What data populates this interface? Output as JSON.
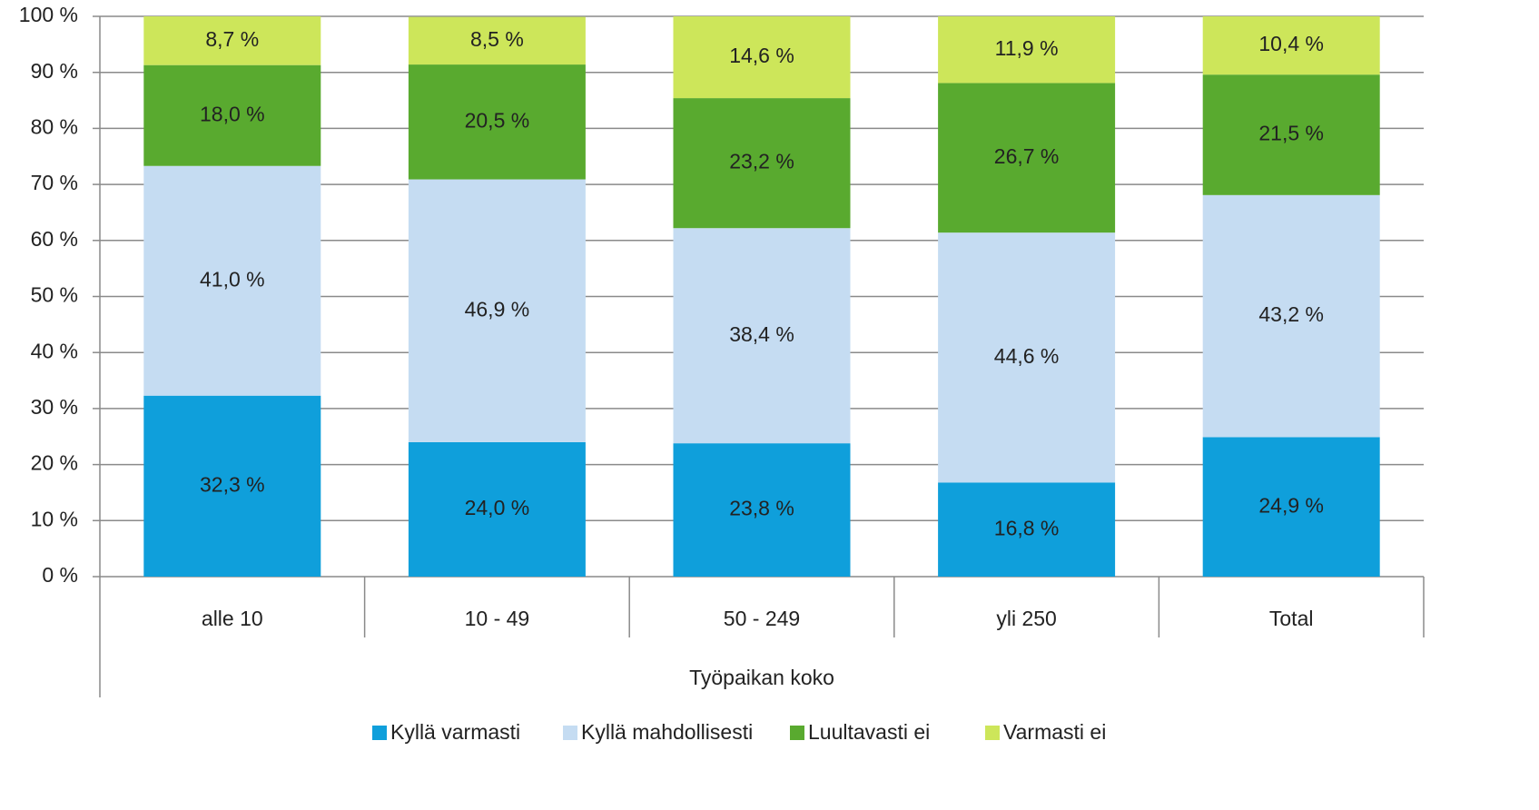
{
  "chart_data": {
    "type": "stacked_bar",
    "x_label": "Työpaikan koko",
    "categories": [
      "alle 10",
      "10 - 49",
      "50 - 249",
      "yli 250",
      "Total"
    ],
    "series": [
      {
        "name": "Kyllä varmasti",
        "color": "#0f9fdb",
        "values": [
          32.3,
          24.0,
          23.8,
          16.8,
          24.9
        ],
        "value_labels": [
          "32,3 %",
          "24,0 %",
          "23,8 %",
          "16,8 %",
          "24,9 %"
        ]
      },
      {
        "name": "Kyllä mahdollisesti",
        "color": "#c5dcf2",
        "values": [
          41.0,
          46.9,
          38.4,
          44.6,
          43.2
        ],
        "value_labels": [
          "41,0 %",
          "46,9 %",
          "38,4 %",
          "44,6 %",
          "43,2 %"
        ]
      },
      {
        "name": "Luultavasti ei",
        "color": "#59aa2f",
        "values": [
          18.0,
          20.5,
          23.2,
          26.7,
          21.5
        ],
        "value_labels": [
          "18,0 %",
          "20,5 %",
          "23,2 %",
          "26,7 %",
          "21,5 %"
        ]
      },
      {
        "name": "Varmasti ei",
        "color": "#cde65a",
        "values": [
          8.7,
          8.5,
          14.6,
          11.9,
          10.4
        ],
        "value_labels": [
          "8,7 %",
          "8,5 %",
          "14,6 %",
          "11,9 %",
          "10,4 %"
        ]
      }
    ],
    "ylim": [
      0,
      100
    ],
    "yticks": [
      {
        "value": 0,
        "label": "0 %"
      },
      {
        "value": 10,
        "label": "10 %"
      },
      {
        "value": 20,
        "label": "20 %"
      },
      {
        "value": 30,
        "label": "30 %"
      },
      {
        "value": 40,
        "label": "40 %"
      },
      {
        "value": 50,
        "label": "50 %"
      },
      {
        "value": 60,
        "label": "60 %"
      },
      {
        "value": 70,
        "label": "70 %"
      },
      {
        "value": 80,
        "label": "80 %"
      },
      {
        "value": 90,
        "label": "90 %"
      },
      {
        "value": 100,
        "label": "100 %"
      }
    ],
    "grid": true,
    "legend": "bottom"
  }
}
